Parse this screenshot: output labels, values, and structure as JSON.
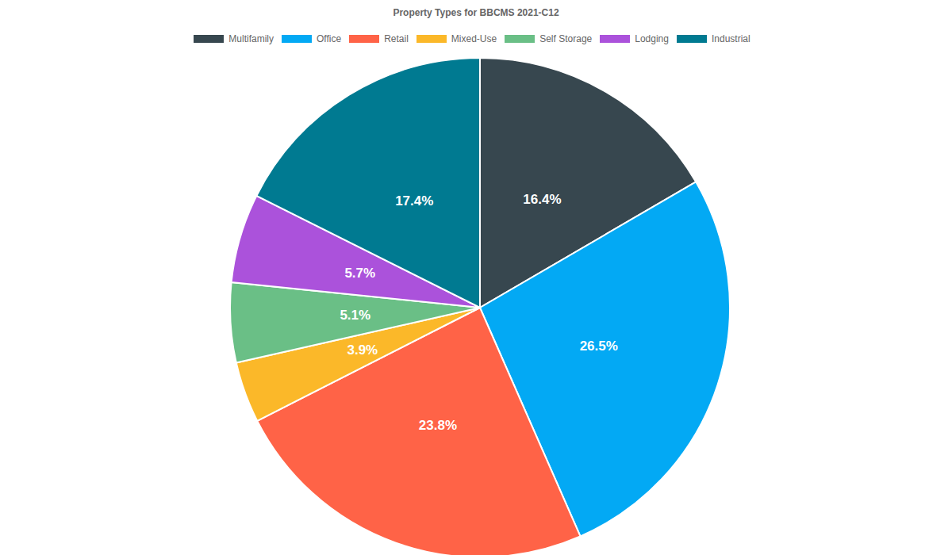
{
  "chart_data": {
    "type": "pie",
    "title": "Property Types for BBCMS 2021-C12",
    "categories": [
      "Multifamily",
      "Office",
      "Retail",
      "Mixed-Use",
      "Self Storage",
      "Lodging",
      "Industrial"
    ],
    "values": [
      16.4,
      26.5,
      23.8,
      3.9,
      5.1,
      5.7,
      17.4
    ],
    "value_labels": [
      "16.4%",
      "26.5%",
      "23.8%",
      "3.9%",
      "5.1%",
      "5.7%",
      "17.4%"
    ],
    "colors": [
      "#37474f",
      "#03a9f4",
      "#ff6347",
      "#fbb829",
      "#6abf86",
      "#ab52db",
      "#007a91"
    ],
    "legend": "top",
    "data_labels": true
  }
}
